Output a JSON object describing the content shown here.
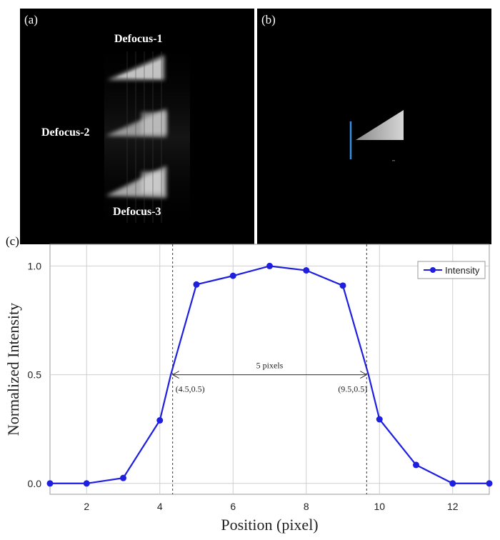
{
  "panels": {
    "a": {
      "label": "(a)",
      "defocus": [
        "Defocus-1",
        "Defocus-2",
        "Defocus-3"
      ]
    },
    "b": {
      "label": "(b)"
    },
    "c": {
      "label": "(c)"
    }
  },
  "chart_data": {
    "type": "line",
    "xlabel": "Position (pixel)",
    "ylabel": "Normalized Intensity",
    "xlim": [
      1,
      13
    ],
    "ylim": [
      -0.05,
      1.1
    ],
    "xticks": [
      2,
      4,
      6,
      8,
      10,
      12
    ],
    "yticks": [
      0.0,
      0.5,
      1.0
    ],
    "ytick_labels": [
      "0.0",
      "0.5",
      "1.0"
    ],
    "grid": true,
    "legend_position": "top-right",
    "series": [
      {
        "name": "Intensity",
        "color": "#1f1fe0",
        "x": [
          1,
          2,
          3,
          4,
          4.3,
          5,
          6,
          7,
          8,
          9,
          9.7,
          10,
          11,
          12,
          13
        ],
        "y": [
          0.0,
          0.0,
          0.025,
          0.29,
          0.5,
          0.915,
          0.955,
          1.0,
          0.98,
          0.91,
          0.5,
          0.295,
          0.085,
          0.0,
          0.0
        ],
        "marker_indices": [
          0,
          1,
          2,
          3,
          5,
          6,
          7,
          8,
          9,
          11,
          12,
          13,
          14
        ]
      }
    ],
    "vlines": [
      4.35,
      9.65
    ],
    "annotations": {
      "span_label": "5 pixels",
      "left_point": "(4.5,0.5)",
      "right_point": "(9.5,0.5)",
      "span_y": 0.5
    }
  }
}
